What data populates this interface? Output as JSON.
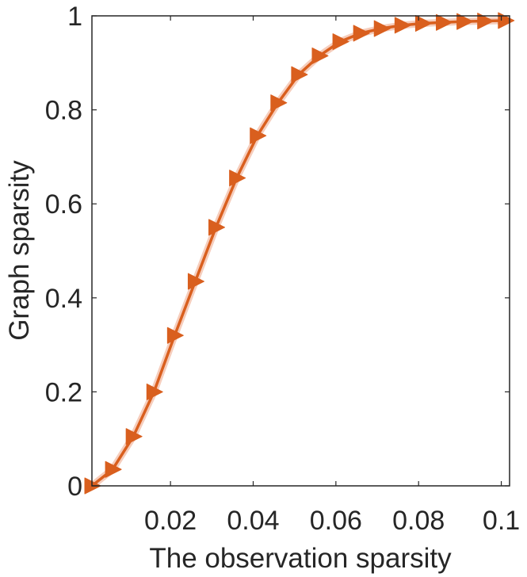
{
  "chart_data": {
    "type": "line",
    "title": "",
    "xlabel": "The observation sparsity",
    "ylabel": "Graph sparsity",
    "xlim": [
      0.001,
      0.102
    ],
    "ylim": [
      0,
      1
    ],
    "xticks": [
      0.02,
      0.04,
      0.06,
      0.08,
      0.1
    ],
    "xtick_labels": [
      "0.02",
      "0.04",
      "0.06",
      "0.08",
      "0.1"
    ],
    "yticks": [
      0,
      0.2,
      0.4,
      0.6,
      0.8,
      1
    ],
    "ytick_labels": [
      "0",
      "0.2",
      "0.4",
      "0.6",
      "0.8",
      "1"
    ],
    "grid": false,
    "box": true,
    "series": [
      {
        "marker": "triangle-right",
        "color": "#D95F1E",
        "band_color": "#F2B8A0",
        "x": [
          0.001,
          0.006,
          0.011,
          0.016,
          0.021,
          0.026,
          0.031,
          0.036,
          0.041,
          0.046,
          0.051,
          0.056,
          0.061,
          0.066,
          0.071,
          0.076,
          0.081,
          0.086,
          0.091,
          0.096,
          0.101
        ],
        "y": [
          0.0,
          0.035,
          0.105,
          0.2,
          0.32,
          0.435,
          0.55,
          0.655,
          0.745,
          0.815,
          0.875,
          0.915,
          0.945,
          0.963,
          0.973,
          0.98,
          0.984,
          0.986,
          0.988,
          0.989,
          0.99
        ]
      }
    ]
  }
}
